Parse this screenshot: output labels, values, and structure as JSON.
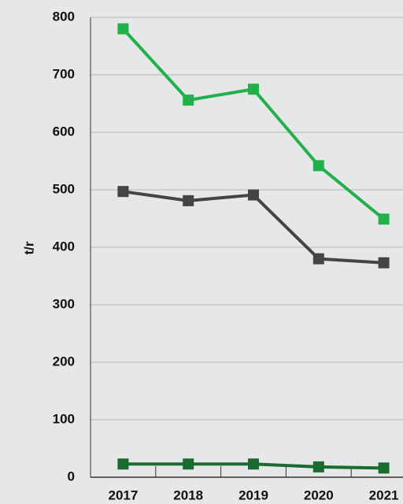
{
  "chart_data": {
    "type": "line",
    "y_label": "t/r",
    "categories": [
      "2017",
      "2018",
      "2019",
      "2020",
      "2021"
    ],
    "series": [
      {
        "color": "#22b04b",
        "values": [
          780,
          656,
          675,
          542,
          449
        ]
      },
      {
        "color": "#444444",
        "values": [
          497,
          481,
          491,
          380,
          373
        ]
      },
      {
        "color": "#1a6b30",
        "values": [
          23,
          23,
          23,
          18,
          16
        ]
      }
    ],
    "ylim": [
      0,
      800
    ],
    "yticks": [
      0,
      100,
      200,
      300,
      400,
      500,
      600,
      700,
      800
    ],
    "grid": true
  }
}
